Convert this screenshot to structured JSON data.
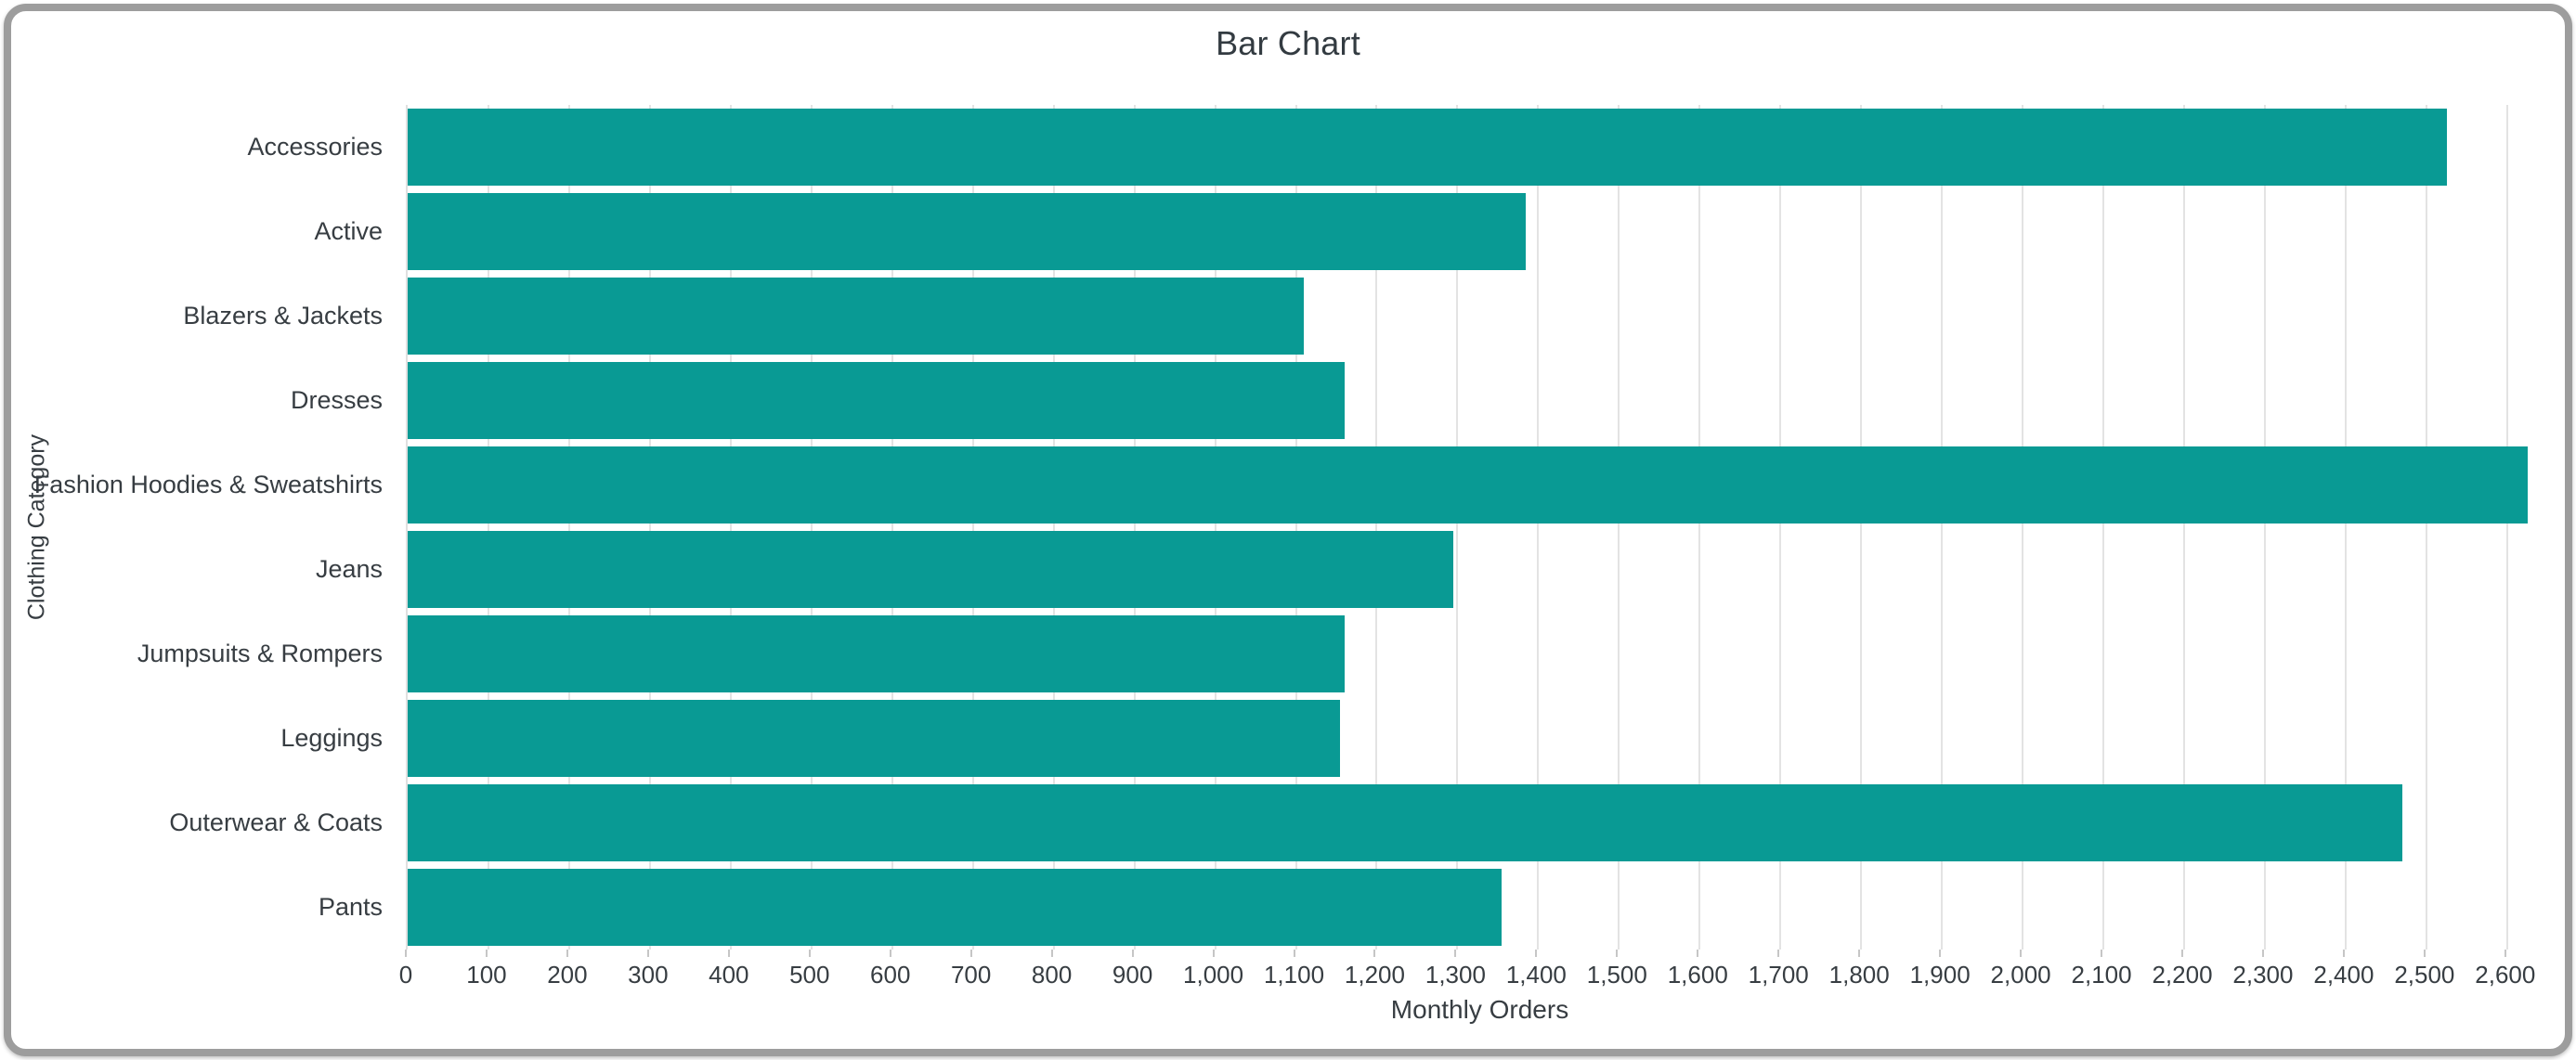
{
  "colors": {
    "bar": "#099a94",
    "grid": "#e3e3e3",
    "axis_line": "#e0e0e0",
    "tick_mark": "#c6c6c6",
    "text": "#373d42",
    "title_text": "#333b41",
    "frame_border": "#9d9d9d",
    "background": "#ffffff"
  },
  "chart_data": {
    "type": "bar",
    "orientation": "horizontal",
    "title": "Bar Chart",
    "xlabel": "Monthly Orders",
    "ylabel": "Clothing Category",
    "categories": [
      "Accessories",
      "Active",
      "Blazers & Jackets",
      "Dresses",
      "Fashion Hoodies & Sweatshirts",
      "Jeans",
      "Jumpsuits & Rompers",
      "Leggings",
      "Outerwear & Coats",
      "Pants"
    ],
    "values": [
      2525,
      1385,
      1110,
      1160,
      2625,
      1295,
      1160,
      1155,
      2470,
      1355
    ],
    "xlim": [
      0,
      2660
    ],
    "xticks": [
      0,
      100,
      200,
      300,
      400,
      500,
      600,
      700,
      800,
      900,
      1000,
      1100,
      1200,
      1300,
      1400,
      1500,
      1600,
      1700,
      1800,
      1900,
      2000,
      2100,
      2200,
      2300,
      2400,
      2500,
      2600
    ],
    "xtick_labels": [
      "0",
      "100",
      "200",
      "300",
      "400",
      "500",
      "600",
      "700",
      "800",
      "900",
      "1,000",
      "1,100",
      "1,200",
      "1,300",
      "1,400",
      "1,500",
      "1,600",
      "1,700",
      "1,800",
      "1,900",
      "2,000",
      "2,100",
      "2,200",
      "2,300",
      "2,400",
      "2,500",
      "2,600"
    ],
    "grid": true,
    "legend": false
  }
}
